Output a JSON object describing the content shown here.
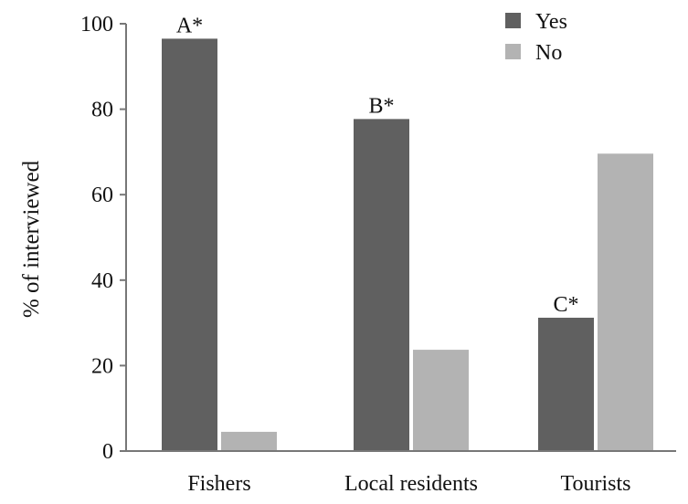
{
  "chart_data": {
    "type": "bar",
    "categories": [
      "Fishers",
      "Local residents",
      "Tourists"
    ],
    "series": [
      {
        "name": "Yes",
        "values": [
          96.5,
          77.7,
          31.2
        ],
        "color": "#606060"
      },
      {
        "name": "No",
        "values": [
          4.5,
          23.7,
          69.6
        ],
        "color": "#b3b3b3"
      }
    ],
    "annotations": [
      "A*",
      "B*",
      "C*"
    ],
    "ylabel": "% of interviewed",
    "xlabel": "",
    "ylim": [
      0,
      100
    ],
    "yticks": [
      "0",
      "20",
      "40",
      "60",
      "80",
      "100"
    ],
    "grid": false,
    "legend_position": "top-right"
  }
}
